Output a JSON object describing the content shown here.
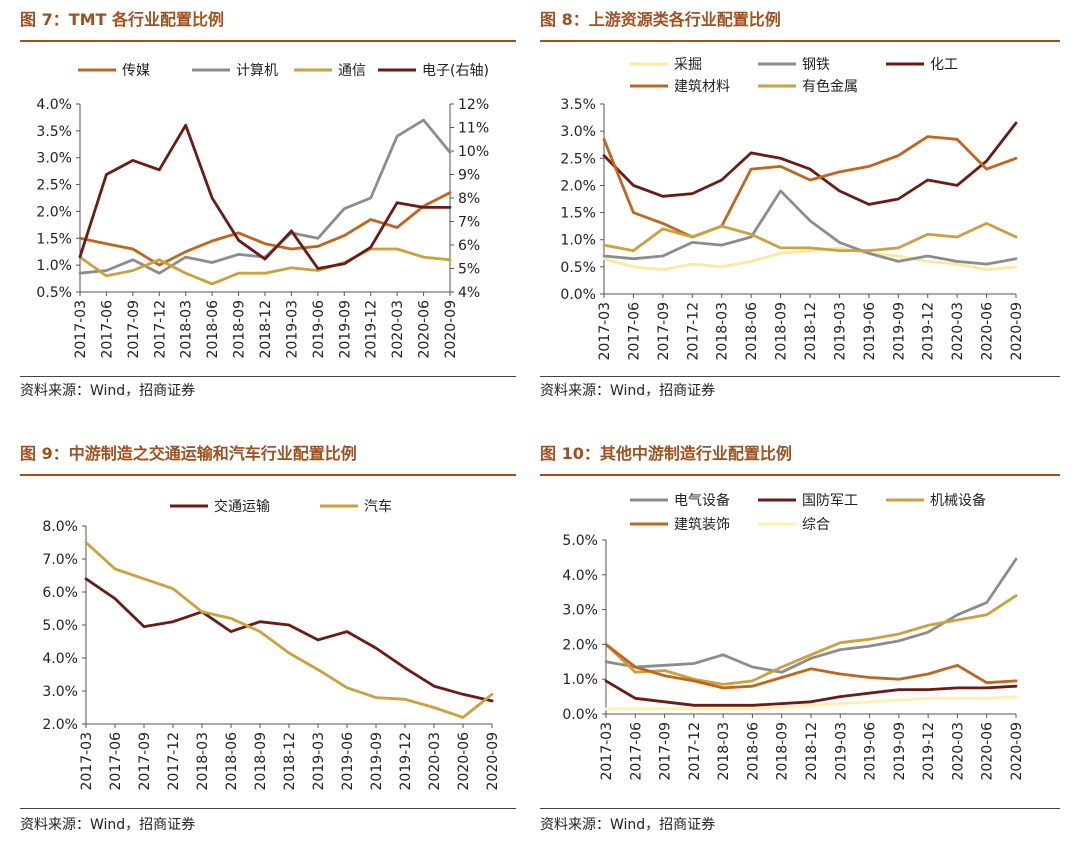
{
  "source_text": "资料来源：Wind，招商证券",
  "charts": [
    {
      "title": "图 7：TMT 各行业配置比例",
      "chart_data": {
        "type": "line",
        "categories": [
          "2017-03",
          "2017-06",
          "2017-09",
          "2017-12",
          "2018-03",
          "2018-06",
          "2018-09",
          "2018-12",
          "2019-03",
          "2019-06",
          "2019-09",
          "2019-12",
          "2020-03",
          "2020-06",
          "2020-09"
        ],
        "ylim": [
          0.5,
          4.0
        ],
        "ytick_step": 0.5,
        "ytick_decimals": 1,
        "y2lim": [
          4,
          12
        ],
        "y2tick_step": 1,
        "y2tick_decimals": 0,
        "series": [
          {
            "name": "传媒",
            "color": "#c0651c",
            "axis": "left",
            "values": [
              1.5,
              1.4,
              1.3,
              1.0,
              1.25,
              1.45,
              1.6,
              1.4,
              1.3,
              1.35,
              1.55,
              1.85,
              1.7,
              2.1,
              2.35
            ]
          },
          {
            "name": "计算机",
            "color": "#8c8c8c",
            "axis": "left",
            "values": [
              0.85,
              0.9,
              1.1,
              0.85,
              1.15,
              1.05,
              1.2,
              1.15,
              1.6,
              1.5,
              2.05,
              2.25,
              3.4,
              3.7,
              3.1
            ]
          },
          {
            "name": "通信",
            "color": "#c9a23c",
            "axis": "left",
            "values": [
              1.15,
              0.8,
              0.9,
              1.1,
              0.85,
              0.65,
              0.85,
              0.85,
              0.95,
              0.9,
              1.05,
              1.3,
              1.3,
              1.15,
              1.1
            ]
          },
          {
            "name": "电子(右轴)",
            "color": "#6b1a14",
            "axis": "right",
            "values": [
              5.5,
              9.0,
              9.6,
              9.2,
              11.1,
              8.0,
              6.2,
              5.4,
              6.6,
              5.0,
              5.2,
              5.9,
              7.8,
              7.6,
              7.6
            ]
          }
        ]
      }
    },
    {
      "title": "图 8：上游资源类各行业配置比例",
      "chart_data": {
        "type": "line",
        "categories": [
          "2017-03",
          "2017-06",
          "2017-09",
          "2017-12",
          "2018-03",
          "2018-06",
          "2018-09",
          "2018-12",
          "2019-03",
          "2019-06",
          "2019-09",
          "2019-12",
          "2020-03",
          "2020-06",
          "2020-09"
        ],
        "ylim": [
          0.0,
          3.5
        ],
        "ytick_step": 0.5,
        "ytick_decimals": 1,
        "series": [
          {
            "name": "采掘",
            "color": "#fce8a0",
            "values": [
              0.65,
              0.5,
              0.45,
              0.55,
              0.5,
              0.6,
              0.75,
              0.8,
              0.85,
              0.75,
              0.7,
              0.6,
              0.55,
              0.45,
              0.5
            ]
          },
          {
            "name": "钢铁",
            "color": "#8c8c8c",
            "values": [
              0.7,
              0.65,
              0.7,
              0.95,
              0.9,
              1.05,
              1.9,
              1.35,
              0.95,
              0.75,
              0.6,
              0.7,
              0.6,
              0.55,
              0.65
            ]
          },
          {
            "name": "化工",
            "color": "#6b1a14",
            "values": [
              2.55,
              2.0,
              1.8,
              1.85,
              2.1,
              2.6,
              2.5,
              2.3,
              1.9,
              1.65,
              1.75,
              2.1,
              2.0,
              2.45,
              3.15
            ]
          },
          {
            "name": "建筑材料",
            "color": "#c0651c",
            "values": [
              2.85,
              1.5,
              1.3,
              1.05,
              1.25,
              2.3,
              2.35,
              2.1,
              2.25,
              2.35,
              2.55,
              2.9,
              2.85,
              2.3,
              2.5
            ]
          },
          {
            "name": "有色金属",
            "color": "#c9a23c",
            "values": [
              0.9,
              0.8,
              1.2,
              1.05,
              1.25,
              1.1,
              0.85,
              0.85,
              0.8,
              0.8,
              0.85,
              1.1,
              1.05,
              1.3,
              1.05
            ]
          }
        ]
      }
    },
    {
      "title": "图 9：中游制造之交通运输和汽车行业配置比例",
      "chart_data": {
        "type": "line",
        "categories": [
          "2017-03",
          "2017-06",
          "2017-09",
          "2017-12",
          "2018-03",
          "2018-06",
          "2018-09",
          "2018-12",
          "2019-03",
          "2019-06",
          "2019-09",
          "2019-12",
          "2020-03",
          "2020-06",
          "2020-09"
        ],
        "ylim": [
          2.0,
          8.0
        ],
        "ytick_step": 1.0,
        "ytick_decimals": 1,
        "series": [
          {
            "name": "交通运输",
            "color": "#6b1a14",
            "values": [
              6.4,
              5.8,
              4.95,
              5.1,
              5.4,
              4.8,
              5.1,
              5.0,
              4.55,
              4.8,
              4.3,
              3.7,
              3.15,
              2.9,
              2.7
            ]
          },
          {
            "name": "汽车",
            "color": "#c9a23c",
            "values": [
              7.5,
              6.7,
              6.4,
              6.1,
              5.4,
              5.2,
              4.8,
              4.15,
              3.65,
              3.1,
              2.8,
              2.75,
              2.5,
              2.2,
              2.9
            ]
          }
        ]
      }
    },
    {
      "title": "图 10：其他中游制造行业配置比例",
      "chart_data": {
        "type": "line",
        "categories": [
          "2017-03",
          "2017-06",
          "2017-09",
          "2017-12",
          "2018-03",
          "2018-06",
          "2018-09",
          "2018-12",
          "2019-03",
          "2019-06",
          "2019-09",
          "2019-12",
          "2020-03",
          "2020-06",
          "2020-09"
        ],
        "ylim": [
          0.0,
          5.0
        ],
        "ytick_step": 1.0,
        "ytick_decimals": 1,
        "series": [
          {
            "name": "电气设备",
            "color": "#8c8c8c",
            "values": [
              1.5,
              1.35,
              1.4,
              1.45,
              1.7,
              1.35,
              1.2,
              1.6,
              1.85,
              1.95,
              2.1,
              2.35,
              2.85,
              3.2,
              4.45
            ]
          },
          {
            "name": "国防军工",
            "color": "#6b1a14",
            "values": [
              0.95,
              0.45,
              0.35,
              0.25,
              0.25,
              0.25,
              0.3,
              0.35,
              0.5,
              0.6,
              0.7,
              0.7,
              0.75,
              0.75,
              0.8
            ]
          },
          {
            "name": "机械设备",
            "color": "#c9a23c",
            "values": [
              2.0,
              1.2,
              1.25,
              1.0,
              0.85,
              0.95,
              1.35,
              1.7,
              2.05,
              2.15,
              2.3,
              2.55,
              2.7,
              2.85,
              3.4
            ]
          },
          {
            "name": "建筑装饰",
            "color": "#c0651c",
            "values": [
              2.0,
              1.35,
              1.1,
              0.95,
              0.75,
              0.8,
              1.05,
              1.3,
              1.15,
              1.05,
              1.0,
              1.15,
              1.4,
              0.9,
              0.95
            ]
          },
          {
            "name": "综合",
            "color": "#fff0b0",
            "values": [
              0.15,
              0.15,
              0.15,
              0.15,
              0.15,
              0.15,
              0.2,
              0.25,
              0.3,
              0.35,
              0.4,
              0.45,
              0.45,
              0.45,
              0.5
            ]
          }
        ]
      }
    }
  ]
}
